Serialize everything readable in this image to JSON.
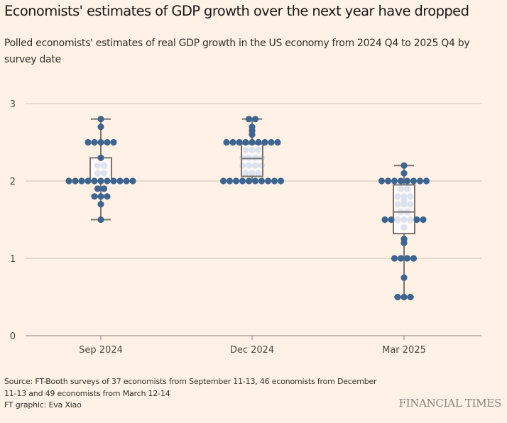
{
  "header": {
    "title": "Economists' estimates of GDP growth over the next year have dropped",
    "subtitle": "Polled economists' estimates of real GDP growth in the US economy from 2024 Q4 to 2025 Q4 by survey date"
  },
  "footer": {
    "source_line1": "Source: FT-Booth surveys of 37 economists from September 11-13, 46 economists from December",
    "source_line2": "11-13 and 49 economists from March 12-14",
    "credit": "FT graphic: Eva Xiao",
    "brand": "FINANCIAL TIMES"
  },
  "colors": {
    "background": "#fff1e5",
    "dot_outside_box": "#3d6590",
    "dot_inside_box": "#dde3ec",
    "box_fill": "#fdf9f6",
    "box_stroke": "#7a7573",
    "grid": "#ccc1b7",
    "axis": "#8a8480"
  },
  "chart_data": {
    "type": "box-swarm",
    "title": "Economists' estimates of GDP growth over the next year have dropped",
    "xlabel": "",
    "ylabel": "",
    "ylim": [
      0,
      3
    ],
    "yticks": [
      0,
      1,
      2,
      3
    ],
    "grid": true,
    "categories": [
      "Sep 2024",
      "Dec 2024",
      "Mar 2025"
    ],
    "series": [
      {
        "name": "Sep 2024",
        "box": {
          "q1": 2.0,
          "median": 2.0,
          "q3": 2.3,
          "whisker_low": 1.5,
          "whisker_high": 2.8
        },
        "points": [
          {
            "value": 2.8,
            "count": 1
          },
          {
            "value": 2.7,
            "count": 1
          },
          {
            "value": 2.5,
            "count": 5
          },
          {
            "value": 2.3,
            "count": 1
          },
          {
            "value": 2.2,
            "count": 2
          },
          {
            "value": 2.1,
            "count": 2
          },
          {
            "value": 2.0,
            "count": 11
          },
          {
            "value": 1.9,
            "count": 2
          },
          {
            "value": 1.8,
            "count": 3
          },
          {
            "value": 1.7,
            "count": 1
          },
          {
            "value": 1.5,
            "count": 1
          }
        ]
      },
      {
        "name": "Dec 2024",
        "box": {
          "q1": 2.06,
          "median": 2.29,
          "q3": 2.48,
          "whisker_low": 2.0,
          "whisker_high": 2.8
        },
        "points": [
          {
            "value": 2.8,
            "count": 2
          },
          {
            "value": 2.7,
            "count": 1
          },
          {
            "value": 2.65,
            "count": 1
          },
          {
            "value": 2.6,
            "count": 1
          },
          {
            "value": 2.5,
            "count": 9
          },
          {
            "value": 2.4,
            "count": 3
          },
          {
            "value": 2.3,
            "count": 4
          },
          {
            "value": 2.2,
            "count": 4
          },
          {
            "value": 2.1,
            "count": 3
          },
          {
            "value": 2.0,
            "count": 10
          }
        ]
      },
      {
        "name": "Mar 2025",
        "box": {
          "q1": 1.32,
          "median": 1.6,
          "q3": 1.95,
          "whisker_low": 0.5,
          "whisker_high": 2.2
        },
        "points": [
          {
            "value": 2.2,
            "count": 1
          },
          {
            "value": 2.1,
            "count": 1
          },
          {
            "value": 2.0,
            "count": 8
          },
          {
            "value": 1.9,
            "count": 2
          },
          {
            "value": 1.8,
            "count": 3
          },
          {
            "value": 1.75,
            "count": 1
          },
          {
            "value": 1.7,
            "count": 3
          },
          {
            "value": 1.6,
            "count": 2
          },
          {
            "value": 1.5,
            "count": 7
          },
          {
            "value": 1.4,
            "count": 1
          },
          {
            "value": 1.25,
            "count": 1
          },
          {
            "value": 1.2,
            "count": 1
          },
          {
            "value": 1.0,
            "count": 4
          },
          {
            "value": 0.75,
            "count": 1
          },
          {
            "value": 0.5,
            "count": 3
          }
        ]
      }
    ]
  }
}
